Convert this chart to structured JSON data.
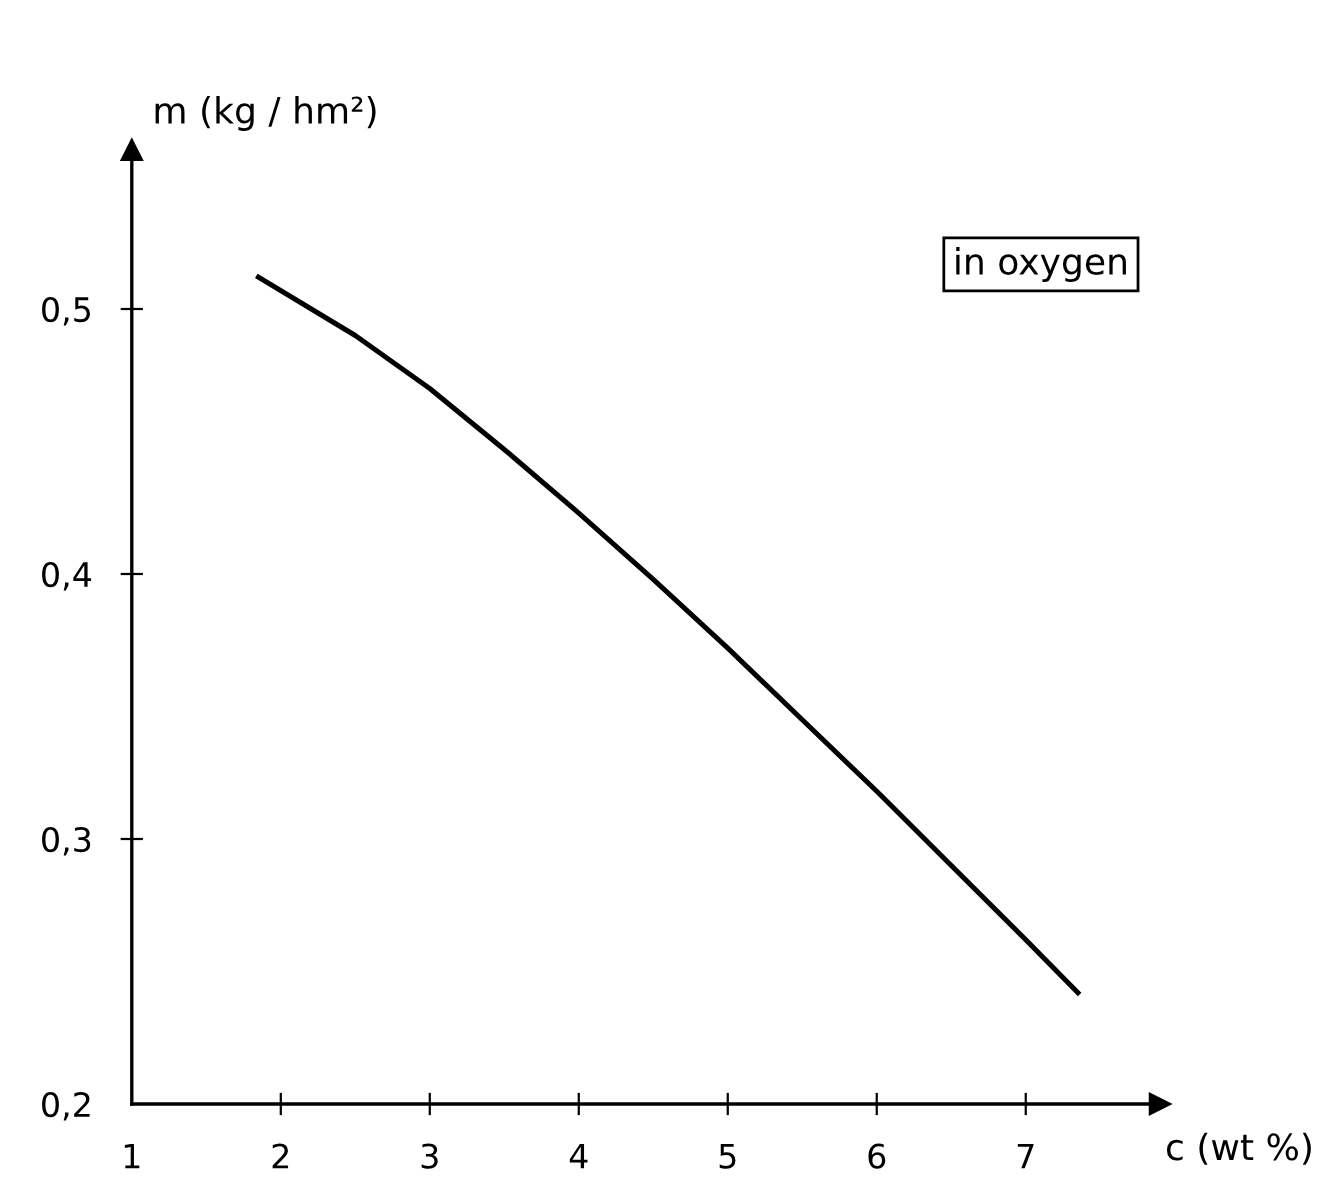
{
  "chart_data": {
    "type": "line",
    "xlabel": "c (wt %)",
    "ylabel": "m (kg / hm²)",
    "x": [
      1.85,
      2.5,
      3,
      3.5,
      4,
      4.5,
      5,
      5.5,
      6,
      6.5,
      7,
      7.35
    ],
    "series": [
      {
        "color": "#000000",
        "values": [
          0.512,
          0.49,
          0.47,
          0.447,
          0.423,
          0.398,
          0.372,
          0.345,
          0.318,
          0.29,
          0.262,
          0.242
        ]
      }
    ],
    "xlim": [
      1,
      7.9
    ],
    "ylim": [
      0.2,
      0.56
    ],
    "xticks": [
      {
        "value": 1,
        "label": "1"
      },
      {
        "value": 2,
        "label": "2"
      },
      {
        "value": 3,
        "label": "3"
      },
      {
        "value": 4,
        "label": "4"
      },
      {
        "value": 5,
        "label": "5"
      },
      {
        "value": 6,
        "label": "6"
      },
      {
        "value": 7,
        "label": "7"
      }
    ],
    "yticks": [
      {
        "value": 0.2,
        "label": "0,2"
      },
      {
        "value": 0.3,
        "label": "0,3"
      },
      {
        "value": 0.4,
        "label": "0,4"
      },
      {
        "value": 0.5,
        "label": "0,5"
      }
    ],
    "annotations": [
      "in oxygen"
    ],
    "grid": false,
    "legend": false,
    "marker": "none",
    "line_style": "solid"
  }
}
